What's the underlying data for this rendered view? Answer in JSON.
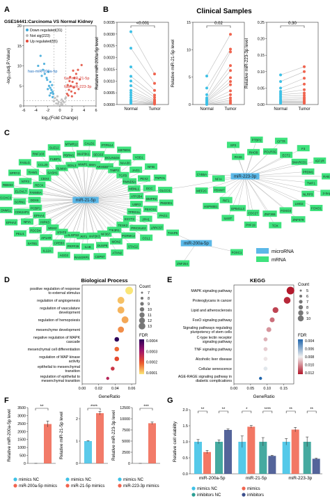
{
  "panels": {
    "A": {
      "label": "A",
      "title": "GSE16441:Carcinoma VS Normal Kidney",
      "legend": [
        "Down regulated(31)",
        "Not sig(223)",
        "Up regulated(55)"
      ],
      "xlabel": "log₂(Fold Change)",
      "ylabel": "-log₁₀(adj.P.Value)",
      "labels": [
        "has-miR-200a-5p",
        "has-miR-21-5p",
        "has-miR-223-3p"
      ]
    },
    "B": {
      "label": "B",
      "title": "Clinical Samples",
      "p_values": [
        "<0.001",
        "0.02",
        "0.30"
      ],
      "ylabels": [
        "Relative miR-200a-5p level",
        "Relative miR-21-5p level",
        "Relative miR-223-3p level"
      ],
      "groups": [
        "Normal",
        "Tumor"
      ]
    },
    "C": {
      "label": "C",
      "legend": [
        "microRNA",
        "mRNA"
      ],
      "mirnas": [
        "miR-21-5p",
        "miR-223-3p",
        "miR-200a-5p"
      ],
      "genes_21": [
        "UBR3",
        "TPRG1L",
        "ESYT2",
        "TESK2",
        "PIK3R1",
        "ZNF367",
        "MAP2K3",
        "KRIT1",
        "RALGPS2",
        "STAT3",
        "MSH2",
        "HIPK3",
        "EPHA4",
        "PCBP1",
        "DDX6",
        "FAM46A",
        "RECK",
        "CBX4",
        "SASH1",
        "SLMAP",
        "EDIL3",
        "WWP1",
        "SMAD7",
        "ARHGEF12",
        "TIMP3",
        "TGFB",
        "RMND5A",
        "MBNL1",
        "ATP2B4",
        "FBXO11",
        "JPH1",
        "PRICKLE2",
        "PGRMC2",
        "MON2",
        "DUSP8",
        "IL1B",
        "PRPF39",
        "CPEB3",
        "AP1AR",
        "PDCD4",
        "NFIA",
        "CDK2AP1",
        "SCRN1",
        "ELOVL7",
        "NTF3",
        "TIAM1",
        "CCL20",
        "FUBP1",
        "PBRM1",
        "MAP3K1",
        "SEC63",
        "DCUN1D4",
        "NAA30",
        "JAG1",
        "PEX2",
        "DCC",
        "BMPR2",
        "PAG1",
        "LRRC57",
        "CCL1",
        "STAG2",
        "ATXN2",
        "CEP97",
        "RASGRP1",
        "AGO2",
        "IL12A",
        "SATB1",
        "PELI1",
        "EPHA2",
        "DNM1L",
        "ZCCHC3",
        "RBM33",
        "SPRY2",
        "FASLG",
        "RNF103",
        "SUZ12",
        "MTMR12",
        "CALD1",
        "PTPN14",
        "KBTBD6",
        "YOD1",
        "NFIB",
        "TNPO1",
        "GLCCI1",
        "PM20D1"
      ],
      "genes_223": [
        "PAX8",
        "RHOB",
        "POLR3G",
        "ECT2",
        "SMARCD1",
        "PRDM1",
        "TWF1",
        "NLRP3",
        "LMO2",
        "FOXO3",
        "ZNF365",
        "CDC27",
        "EPB41L3",
        "RIF1",
        "FBXW7",
        "NFIA",
        "SP3",
        "PTBP2",
        "CFTR",
        "F3",
        "IGF1R",
        "RAB13",
        "2-Sep",
        "FOXO1",
        "ZNF679",
        "TOX",
        "PHF19",
        "IL6ST",
        "HSP90B1",
        "MEF2C",
        "CYB5A"
      ],
      "genes_200": [
        "THAP5",
        "FOXC1",
        "ZNF254"
      ]
    },
    "D": {
      "label": "D",
      "title": "Biological Process",
      "xlabel": "GeneRatio",
      "count_title": "Count",
      "fdr_title": "FDR",
      "xticks": [
        "0.00",
        "0.02",
        "0.04",
        "0.06"
      ],
      "fdr_ticks": [
        "0.0004",
        "0.0003",
        "0.0002",
        "0.0001"
      ],
      "count_levels": [
        "7",
        "8",
        "9",
        "10",
        "11",
        "12",
        "13"
      ]
    },
    "E": {
      "label": "E",
      "title": "KEGG",
      "xlabel": "GeneRatio",
      "count_title": "Count",
      "fdr_title": "FDR",
      "xticks": [
        "0.00",
        "0.05",
        "0.10",
        "0.15"
      ],
      "fdr_ticks": [
        "0.004",
        "0.006",
        "0.008",
        "0.010",
        "0.012"
      ],
      "count_levels": [
        "5",
        "6",
        "7",
        "8",
        "9",
        "10"
      ]
    },
    "F": {
      "label": "F",
      "ylabels": [
        "Relative miR-200a-5p level",
        "Relative miR-21-5p level",
        "Relative miR-223-3p level"
      ],
      "sig": [
        "**",
        "****",
        "***"
      ],
      "legend": [
        [
          "mimics NC",
          "miR-200a-5p mimics"
        ],
        [
          "mimics NC",
          "miR-21-5p mimics"
        ],
        [
          "mimics NC",
          "miR-223-3p mimics"
        ]
      ]
    },
    "G": {
      "label": "G",
      "ylabel": "Relative cell viability",
      "sig": [
        "**",
        "**",
        "*",
        "****",
        "**",
        "**"
      ],
      "legend": [
        "mimics NC",
        "mimics",
        "inhibitors NC",
        "inhibitors"
      ]
    }
  },
  "colors": {
    "down": "#3aa7d8",
    "notsig": "#b9b9b9",
    "up": "#e24a3a",
    "normal": "#3ec1e6",
    "tumor": "#f0644f",
    "mirna": "#5bb8e8",
    "mrna": "#3ee27d",
    "teal": "#2b9e93",
    "navy": "#3c4f8c"
  },
  "chart_data": [
    {
      "panel": "A",
      "type": "scatter",
      "title": "GSE16441:Carcinoma VS Normal Kidney",
      "xlabel": "log₂(Fold Change)",
      "ylabel": "-log₁₀(adj.P.Value)",
      "xlim": [
        -6,
        6
      ],
      "ylim": [
        0,
        20
      ],
      "xticks": [
        -6,
        -4,
        -2,
        0,
        2,
        4,
        6
      ],
      "yticks": [
        0,
        5,
        10,
        15,
        20
      ],
      "series": [
        {
          "name": "Down regulated(31)",
          "points": [
            [
              -3.2,
              12.5
            ],
            [
              -2.8,
              9
            ],
            [
              -2.5,
              8
            ],
            [
              -2.1,
              6.5
            ],
            [
              -1.8,
              5
            ],
            [
              -1.6,
              4.5
            ],
            [
              -1.4,
              4
            ],
            [
              -1.2,
              3.5
            ],
            [
              -1.1,
              3
            ],
            [
              -1.6,
              6
            ],
            [
              -2.2,
              7
            ],
            [
              -3.6,
              10
            ],
            [
              -1.9,
              8.5
            ],
            [
              -1.3,
              5.2
            ],
            [
              -2.6,
              10.5
            ],
            [
              -3.0,
              7.5
            ],
            [
              -1.5,
              3.2
            ],
            [
              -2.0,
              4.2
            ],
            [
              -1.7,
              2.6
            ],
            [
              -1.2,
              2.2
            ]
          ]
        },
        {
          "name": "Not sig(223)",
          "points": [
            [
              -0.5,
              1.5
            ],
            [
              -0.3,
              0.5
            ],
            [
              0.2,
              0.8
            ],
            [
              0.5,
              1.2
            ],
            [
              -0.8,
              2.0
            ],
            [
              0.9,
              1.8
            ],
            [
              0.1,
              0.2
            ],
            [
              -0.2,
              1.0
            ],
            [
              0.4,
              0.4
            ],
            [
              0.7,
              0.9
            ],
            [
              -0.6,
              0.6
            ],
            [
              1.0,
              2.1
            ],
            [
              -1.0,
              1.2
            ],
            [
              0.3,
              1.6
            ],
            [
              -0.4,
              2.4
            ]
          ]
        },
        {
          "name": "Up regulated(55)",
          "points": [
            [
              1.2,
              3
            ],
            [
              1.5,
              4
            ],
            [
              1.8,
              5
            ],
            [
              2.1,
              6
            ],
            [
              2.4,
              7
            ],
            [
              2.7,
              8
            ],
            [
              3.0,
              9
            ],
            [
              1.4,
              2.6
            ],
            [
              1.9,
              3.6
            ],
            [
              2.3,
              4.6
            ],
            [
              2.8,
              5.6
            ],
            [
              3.3,
              6.6
            ],
            [
              1.6,
              6.2
            ],
            [
              2.2,
              8.8
            ],
            [
              3.6,
              10.2
            ],
            [
              1.3,
              5.2
            ],
            [
              2.0,
              2.4
            ],
            [
              2.5,
              3.2
            ],
            [
              3.1,
              4.2
            ],
            [
              1.7,
              7.2
            ]
          ]
        }
      ],
      "annotations": [
        "has-miR-200a-5p",
        "has-miR-21-5p",
        "has-miR-223-3p"
      ]
    },
    {
      "panel": "B1",
      "type": "scatter",
      "title": "Clinical Samples",
      "ylabel": "Relative miR-200a-5p level",
      "categories": [
        "Normal",
        "Tumor"
      ],
      "ylim": [
        0,
        0.0035
      ],
      "yticks": [
        0.0,
        0.0005,
        0.001,
        0.0015,
        0.002,
        0.0025,
        0.003,
        0.0035
      ],
      "p_value": "<0.001",
      "normal": [
        0.0031,
        0.0024,
        0.0016,
        0.0012,
        0.001,
        0.0008,
        0.0006,
        0.0005,
        0.0004,
        0.0003,
        0.0002,
        0.00015,
        0.0001,
        5e-05
      ],
      "tumor": [
        0.0013,
        0.0009,
        0.0006,
        0.0004,
        0.0003,
        0.0002,
        0.00015,
        0.0001,
        8e-05,
        6e-05,
        5e-05,
        4e-05,
        3e-05,
        2e-05
      ]
    },
    {
      "panel": "B2",
      "type": "scatter",
      "ylabel": "Relative miR-21-5p level",
      "categories": [
        "Normal",
        "Tumor"
      ],
      "ylim": [
        0,
        15
      ],
      "yticks": [
        0,
        5,
        10,
        15
      ],
      "p_value": "0.02",
      "normal": [
        5.2,
        3.0,
        1.8,
        1.2,
        1.0,
        0.8,
        0.6,
        0.5,
        0.4,
        0.3,
        0.2,
        0.1,
        0.05,
        0.02
      ],
      "tumor": [
        12.8,
        10.1,
        9.6,
        7.1,
        6.2,
        4.9,
        4.2,
        3.6,
        2.5,
        1.8,
        1.2,
        0.8,
        0.5,
        0.2
      ]
    },
    {
      "panel": "B3",
      "type": "scatter",
      "ylabel": "Relative miR-223-3p level",
      "categories": [
        "Normal",
        "Tumor"
      ],
      "ylim": [
        0,
        0.25
      ],
      "yticks": [
        0.0,
        0.05,
        0.1,
        0.15,
        0.2,
        0.25
      ],
      "p_value": "0.30",
      "normal": [
        0.09,
        0.07,
        0.05,
        0.04,
        0.035,
        0.03,
        0.025,
        0.02,
        0.015,
        0.012,
        0.01,
        0.008,
        0.006,
        0.004
      ],
      "tumor": [
        0.115,
        0.1,
        0.08,
        0.062,
        0.045,
        0.035,
        0.028,
        0.022,
        0.018,
        0.014,
        0.01,
        0.008,
        0.006,
        0.004
      ]
    },
    {
      "panel": "D",
      "type": "scatter",
      "title": "Biological Process",
      "xlabel": "GeneRatio",
      "xlim": [
        0,
        0.065
      ],
      "terms": [
        "positive regulation of response to external stimulus",
        "regulation of angiogenesis",
        "regulation of vasculature development",
        "regulation of hemopoiesis",
        "mesenchyme development",
        "negative regulation of MAPK cascade",
        "mesenchymal cell differentiation",
        "regulation of MAP kinase activity",
        "epithelial to mesenchymal transition",
        "regulation of epithelial to mesenchymal transition"
      ],
      "gene_ratio": [
        0.057,
        0.047,
        0.047,
        0.052,
        0.047,
        0.042,
        0.042,
        0.042,
        0.037,
        0.031
      ],
      "count": [
        13,
        12,
        12,
        12,
        11,
        9,
        9,
        9,
        8,
        7
      ],
      "fdr": [
        5e-05,
        8e-05,
        9e-05,
        0.0001,
        0.00012,
        0.0004,
        0.00015,
        0.00018,
        0.00022,
        0.00025
      ]
    },
    {
      "panel": "E",
      "type": "scatter",
      "title": "KEGG",
      "xlabel": "GeneRatio",
      "xlim": [
        0,
        0.18
      ],
      "terms": [
        "MAPK signaling pathway",
        "Proteoglycans in cancer",
        "Lipid and atherosclerosis",
        "FoxO signaling pathway",
        "Signaling pathways regulating pluripotency of stem cells",
        "C-type lectin receptor signaling pathway",
        "TNF signaling pathway",
        "Alcoholic liver disease",
        "Cellular senescence",
        "AGE-RAGE signaling pathway in diabetic complications"
      ],
      "gene_ratio": [
        0.17,
        0.16,
        0.125,
        0.115,
        0.105,
        0.095,
        0.095,
        0.095,
        0.095,
        0.08
      ],
      "count": [
        10,
        9,
        8,
        7,
        7,
        6,
        6,
        6,
        6,
        5
      ],
      "fdr": [
        0.0032,
        0.0035,
        0.004,
        0.0048,
        0.0055,
        0.006,
        0.0065,
        0.007,
        0.0075,
        0.0112
      ]
    },
    {
      "panel": "F1",
      "type": "bar",
      "ylabel": "Relative miR-200a-5p level",
      "categories": [
        "mimics NC",
        "miR-200a-5p mimics"
      ],
      "values": [
        1,
        2470
      ],
      "errors": [
        0.2,
        190
      ],
      "ylim": [
        0,
        3500
      ],
      "yticks": [
        0,
        500,
        1000,
        1500,
        2000,
        2500,
        3000,
        3500
      ],
      "sig": "**"
    },
    {
      "panel": "F2",
      "type": "bar",
      "ylabel": "Relative miR-21-5p level",
      "categories": [
        "mimics NC",
        "miR-21-5p mimics"
      ],
      "values": [
        1.0,
        2.25
      ],
      "errors": [
        0.02,
        0.08
      ],
      "ylim": [
        0,
        2.5
      ],
      "yticks": [
        0,
        1,
        2
      ],
      "sig": "****"
    },
    {
      "panel": "F3",
      "type": "bar",
      "ylabel": "Relative miR-223-3p level",
      "categories": [
        "mimics NC",
        "miR-223-3p mimics"
      ],
      "values": [
        1,
        9000
      ],
      "errors": [
        0.2,
        260
      ],
      "ylim": [
        0,
        12500
      ],
      "yticks": [
        0,
        2500,
        5000,
        7500,
        10000,
        12500
      ],
      "sig": "***"
    },
    {
      "panel": "G",
      "type": "bar",
      "ylabel": "Relative cell viability",
      "categories": [
        "miR-200a-5p",
        "miR-21-5p",
        "miR-223-3p"
      ],
      "series": [
        {
          "name": "mimics NC",
          "values": [
            1.0,
            1.0,
            1.0
          ],
          "errors": [
            0.07,
            0.18,
            0.1
          ]
        },
        {
          "name": "mimics",
          "values": [
            0.68,
            1.47,
            1.38
          ],
          "errors": [
            0.05,
            0.04,
            0.07
          ]
        },
        {
          "name": "inhibitors NC",
          "values": [
            1.0,
            1.0,
            1.0
          ],
          "errors": [
            0.06,
            0.13,
            0.15
          ]
        },
        {
          "name": "inhibitors",
          "values": [
            1.37,
            0.56,
            0.47
          ],
          "errors": [
            0.03,
            0.02,
            0.02
          ]
        }
      ],
      "ylim": [
        0,
        2
      ],
      "yticks": [
        0.0,
        0.5,
        1.0,
        1.5,
        2.0
      ],
      "sig": [
        "**",
        "**",
        "*",
        "****",
        "**",
        "**"
      ]
    }
  ]
}
